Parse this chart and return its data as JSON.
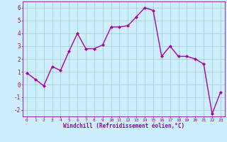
{
  "x": [
    0,
    1,
    2,
    3,
    4,
    5,
    6,
    7,
    8,
    9,
    10,
    11,
    12,
    13,
    14,
    15,
    16,
    17,
    18,
    19,
    20,
    21,
    22,
    23
  ],
  "y": [
    0.9,
    0.4,
    -0.1,
    1.4,
    1.1,
    2.6,
    4.0,
    2.8,
    2.8,
    3.1,
    4.5,
    4.5,
    4.6,
    5.3,
    6.0,
    5.8,
    2.2,
    3.0,
    2.2,
    2.2,
    2.0,
    1.6,
    -2.3,
    -0.6
  ],
  "line_color": "#aa00aa",
  "marker": "D",
  "marker_size": 2.0,
  "bg_color": "#cceeff",
  "grid_color": "#99cccc",
  "xlabel": "Windchill (Refroidissement éolien,°C)",
  "xlim": [
    -0.5,
    23.5
  ],
  "ylim": [
    -2.5,
    6.5
  ],
  "yticks": [
    -2,
    -1,
    0,
    1,
    2,
    3,
    4,
    5,
    6
  ],
  "xticks": [
    0,
    1,
    2,
    3,
    4,
    5,
    6,
    7,
    8,
    9,
    10,
    11,
    12,
    13,
    14,
    15,
    16,
    17,
    18,
    19,
    20,
    21,
    22,
    23
  ],
  "tick_color": "#990099",
  "label_color": "#990099",
  "linewidth": 1.0,
  "spine_color": "#990099"
}
